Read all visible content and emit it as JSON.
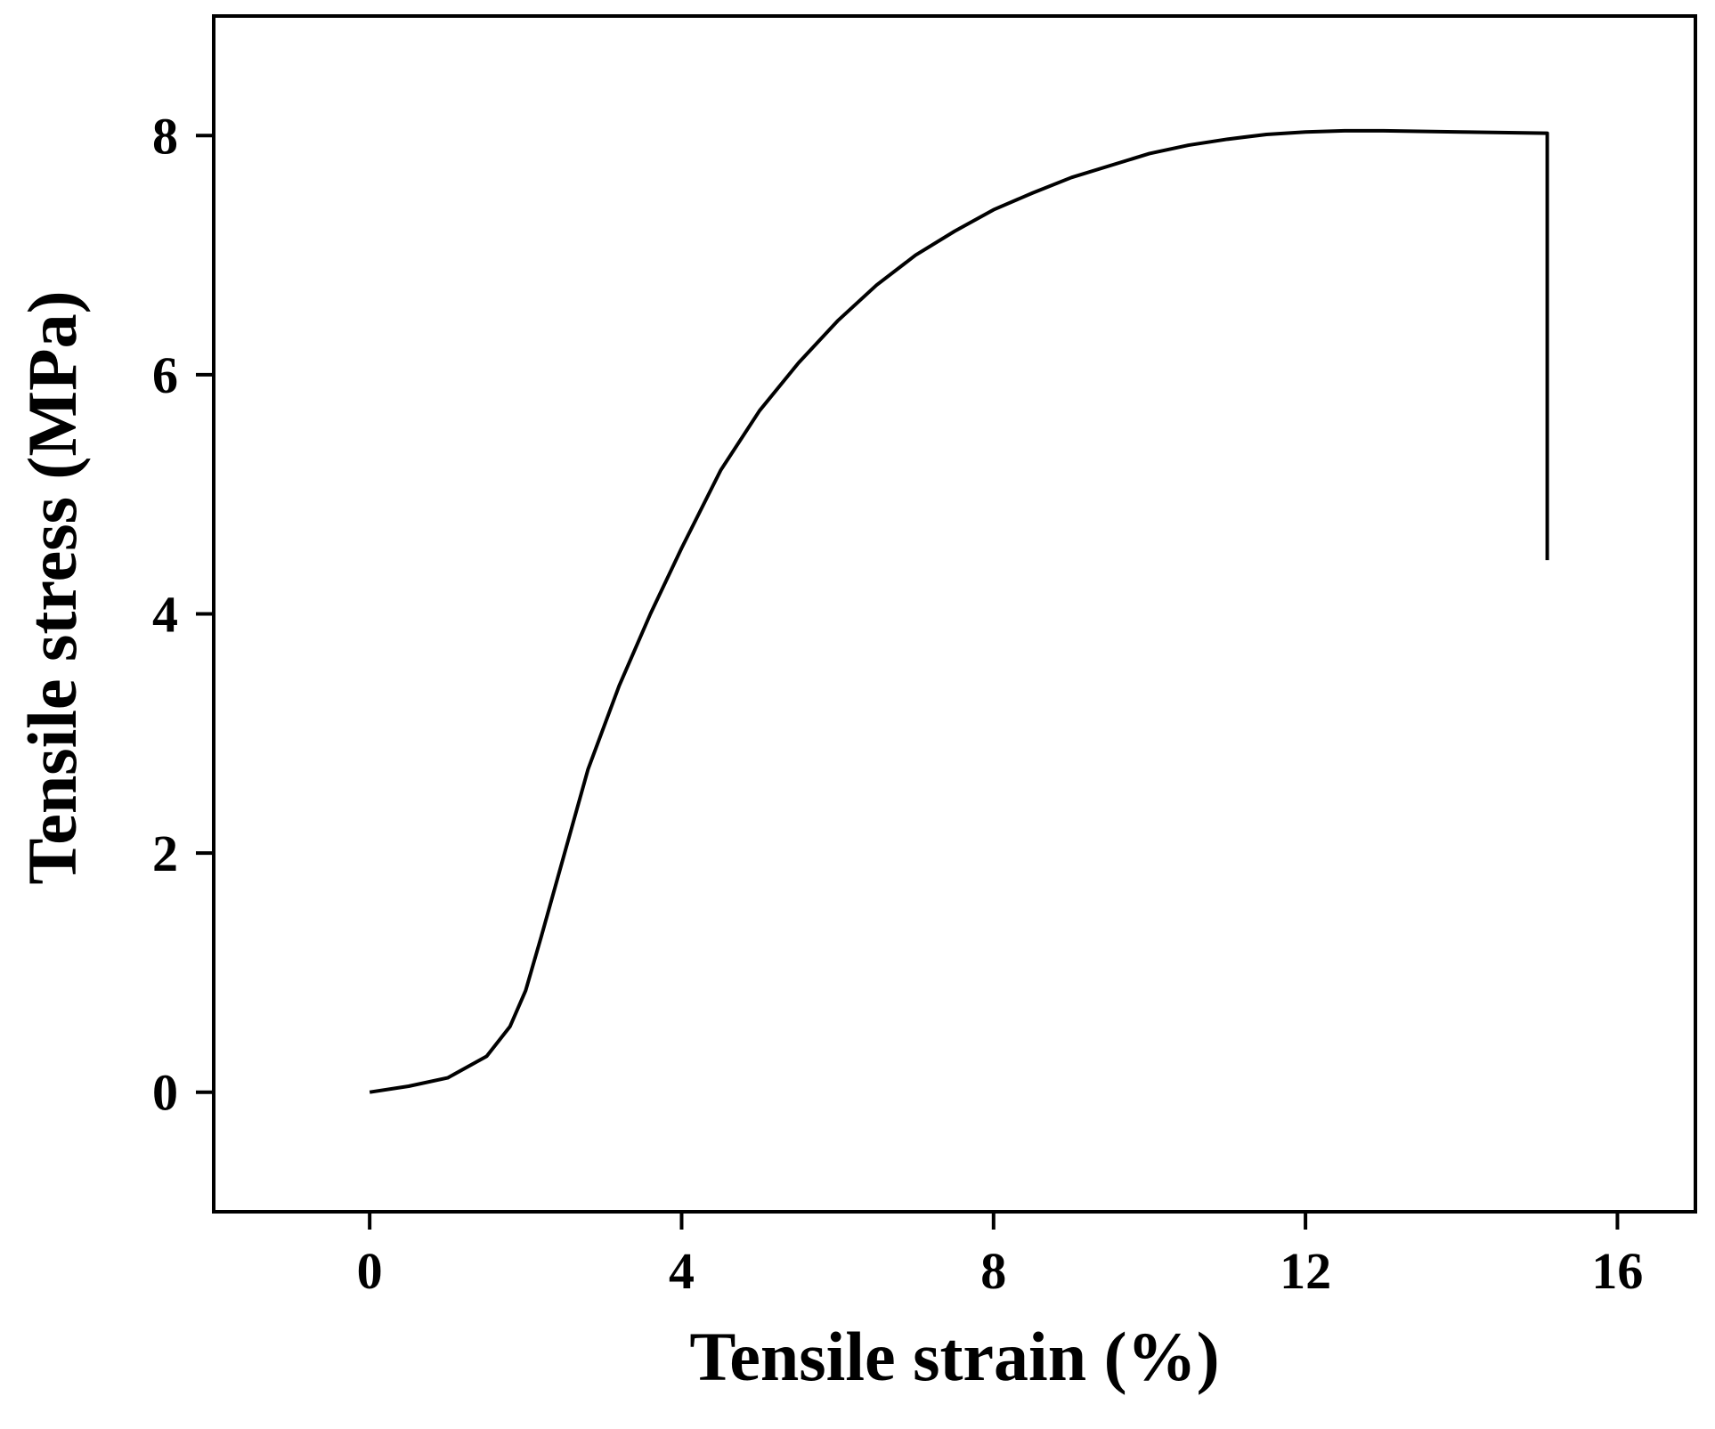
{
  "chart_data": {
    "type": "line",
    "xlabel": "Tensile strain (%)",
    "ylabel": "Tensile stress (MPa)",
    "x": [
      0,
      0.5,
      1,
      1.5,
      1.8,
      2,
      2.2,
      2.5,
      2.8,
      3.2,
      3.6,
      4,
      4.5,
      5,
      5.5,
      6,
      6.5,
      7,
      7.5,
      8,
      8.5,
      9,
      9.5,
      10,
      10.5,
      11,
      11.5,
      12,
      12.5,
      13,
      14,
      15.1,
      15.1
    ],
    "values": [
      0,
      0.05,
      0.12,
      0.3,
      0.55,
      0.85,
      1.3,
      2.0,
      2.7,
      3.4,
      4.0,
      4.55,
      5.2,
      5.7,
      6.1,
      6.45,
      6.75,
      7.0,
      7.2,
      7.38,
      7.52,
      7.65,
      7.75,
      7.85,
      7.92,
      7.97,
      8.01,
      8.03,
      8.04,
      8.04,
      8.03,
      8.02,
      4.45
    ],
    "color": "#000000",
    "xlim": [
      -2,
      17
    ],
    "xticks": [
      0,
      4,
      8,
      12,
      16
    ],
    "ylim": [
      -1,
      9
    ],
    "yticks": [
      0,
      2,
      4,
      6,
      8
    ],
    "grid": false
  }
}
